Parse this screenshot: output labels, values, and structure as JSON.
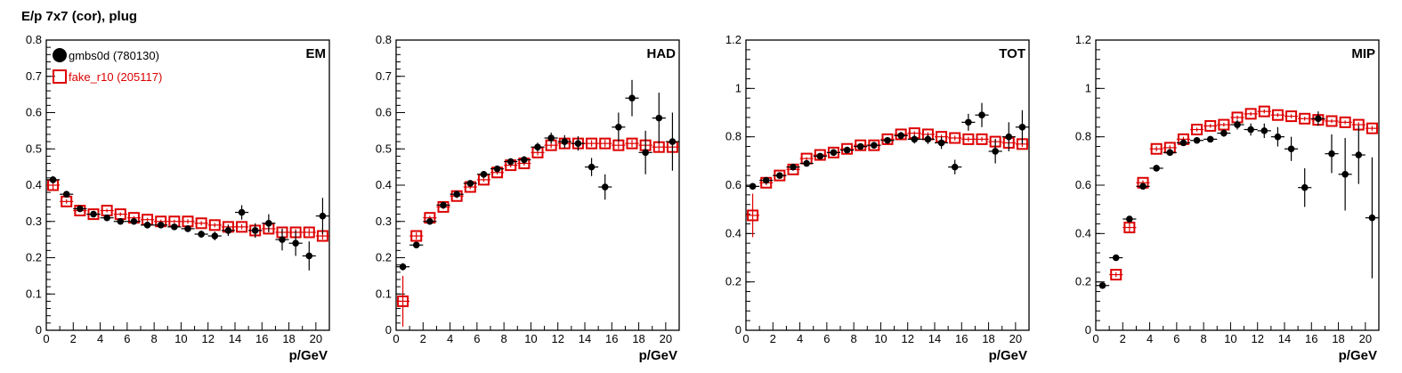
{
  "page_title": "E/p 7x7 (cor), plug",
  "colors": {
    "data": "#000000",
    "mc": "#dd0000"
  },
  "chart_data": [
    {
      "type": "scatter",
      "panel_label": "EM",
      "xlabel": "p/GeV",
      "xlim": [
        0,
        21
      ],
      "ylim": [
        0,
        0.8
      ],
      "yticks": [
        0,
        0.1,
        0.2,
        0.3,
        0.4,
        0.5,
        0.6,
        0.7,
        0.8
      ],
      "legend": {
        "position": "top-left",
        "entries": [
          {
            "label": "gmbs0d (780130)",
            "marker": "filled-circle",
            "color": "#000000"
          },
          {
            "label": "fake_r10 (205117)",
            "marker": "open-square",
            "color": "#dd0000"
          }
        ]
      },
      "series": [
        {
          "name": "gmbs0d (780130)",
          "marker": "filled-circle",
          "color": "#000000",
          "x": [
            0.5,
            1.5,
            2.5,
            3.5,
            4.5,
            5.5,
            6.5,
            7.5,
            8.5,
            9.5,
            10.5,
            11.5,
            12.5,
            13.5,
            14.5,
            15.5,
            16.5,
            17.5,
            18.5,
            19.5,
            20.5
          ],
          "y": [
            0.415,
            0.375,
            0.335,
            0.32,
            0.31,
            0.3,
            0.3,
            0.29,
            0.29,
            0.285,
            0.28,
            0.265,
            0.26,
            0.275,
            0.325,
            0.275,
            0.295,
            0.25,
            0.24,
            0.205,
            0.315
          ],
          "yerr": [
            0.01,
            0.006,
            0.006,
            0.006,
            0.006,
            0.006,
            0.006,
            0.007,
            0.007,
            0.008,
            0.009,
            0.01,
            0.012,
            0.015,
            0.02,
            0.02,
            0.025,
            0.03,
            0.035,
            0.04,
            0.05
          ]
        },
        {
          "name": "fake_r10 (205117)",
          "marker": "open-square",
          "color": "#dd0000",
          "x": [
            0.5,
            1.5,
            2.5,
            3.5,
            4.5,
            5.5,
            6.5,
            7.5,
            8.5,
            9.5,
            10.5,
            11.5,
            12.5,
            13.5,
            14.5,
            15.5,
            16.5,
            17.5,
            18.5,
            19.5,
            20.5
          ],
          "y": [
            0.4,
            0.355,
            0.33,
            0.32,
            0.33,
            0.32,
            0.31,
            0.305,
            0.3,
            0.3,
            0.3,
            0.295,
            0.29,
            0.285,
            0.285,
            0.275,
            0.28,
            0.27,
            0.27,
            0.27,
            0.26
          ],
          "yerr": [
            0.015,
            0.006,
            0.005,
            0.005,
            0.005,
            0.005,
            0.005,
            0.005,
            0.005,
            0.005,
            0.006,
            0.006,
            0.006,
            0.007,
            0.007,
            0.007,
            0.008,
            0.008,
            0.009,
            0.01,
            0.01
          ]
        }
      ]
    },
    {
      "type": "scatter",
      "panel_label": "HAD",
      "xlabel": "p/GeV",
      "xlim": [
        0,
        21
      ],
      "ylim": [
        0,
        0.8
      ],
      "yticks": [
        0,
        0.1,
        0.2,
        0.3,
        0.4,
        0.5,
        0.6,
        0.7,
        0.8
      ],
      "series": [
        {
          "name": "gmbs0d (780130)",
          "marker": "filled-circle",
          "color": "#000000",
          "x": [
            0.5,
            1.5,
            2.5,
            3.5,
            4.5,
            5.5,
            6.5,
            7.5,
            8.5,
            9.5,
            10.5,
            11.5,
            12.5,
            13.5,
            14.5,
            15.5,
            16.5,
            17.5,
            18.5,
            19.5,
            20.5
          ],
          "y": [
            0.175,
            0.235,
            0.3,
            0.345,
            0.375,
            0.405,
            0.43,
            0.445,
            0.465,
            0.47,
            0.505,
            0.53,
            0.52,
            0.515,
            0.45,
            0.395,
            0.56,
            0.64,
            0.49,
            0.585,
            0.52
          ],
          "yerr": [
            0.01,
            0.008,
            0.008,
            0.008,
            0.008,
            0.008,
            0.008,
            0.009,
            0.009,
            0.01,
            0.012,
            0.015,
            0.018,
            0.02,
            0.025,
            0.035,
            0.04,
            0.05,
            0.06,
            0.07,
            0.08
          ]
        },
        {
          "name": "fake_r10 (205117)",
          "marker": "open-square",
          "color": "#dd0000",
          "x": [
            0.5,
            1.5,
            2.5,
            3.5,
            4.5,
            5.5,
            6.5,
            7.5,
            8.5,
            9.5,
            10.5,
            11.5,
            12.5,
            13.5,
            14.5,
            15.5,
            16.5,
            17.5,
            18.5,
            19.5,
            20.5
          ],
          "y": [
            0.08,
            0.26,
            0.31,
            0.34,
            0.37,
            0.395,
            0.415,
            0.435,
            0.455,
            0.46,
            0.49,
            0.51,
            0.515,
            0.515,
            0.515,
            0.515,
            0.51,
            0.515,
            0.51,
            0.505,
            0.505
          ],
          "yerr": [
            0.07,
            0.01,
            0.006,
            0.006,
            0.006,
            0.006,
            0.006,
            0.006,
            0.006,
            0.006,
            0.008,
            0.008,
            0.008,
            0.009,
            0.009,
            0.01,
            0.01,
            0.01,
            0.012,
            0.012,
            0.012
          ]
        }
      ]
    },
    {
      "type": "scatter",
      "panel_label": "TOT",
      "xlabel": "p/GeV",
      "xlim": [
        0,
        21
      ],
      "ylim": [
        0,
        1.2
      ],
      "yticks": [
        0,
        0.2,
        0.4,
        0.6,
        0.8,
        1,
        1.2
      ],
      "series": [
        {
          "name": "gmbs0d (780130)",
          "marker": "filled-circle",
          "color": "#000000",
          "x": [
            0.5,
            1.5,
            2.5,
            3.5,
            4.5,
            5.5,
            6.5,
            7.5,
            8.5,
            9.5,
            10.5,
            11.5,
            12.5,
            13.5,
            14.5,
            15.5,
            16.5,
            17.5,
            18.5,
            19.5,
            20.5
          ],
          "y": [
            0.595,
            0.62,
            0.64,
            0.675,
            0.69,
            0.72,
            0.735,
            0.745,
            0.76,
            0.765,
            0.785,
            0.805,
            0.79,
            0.79,
            0.775,
            0.675,
            0.86,
            0.89,
            0.74,
            0.8,
            0.84
          ],
          "yerr": [
            0.01,
            0.008,
            0.008,
            0.008,
            0.008,
            0.008,
            0.008,
            0.009,
            0.009,
            0.01,
            0.012,
            0.015,
            0.018,
            0.02,
            0.025,
            0.03,
            0.035,
            0.05,
            0.05,
            0.06,
            0.07
          ]
        },
        {
          "name": "fake_r10 (205117)",
          "marker": "open-square",
          "color": "#dd0000",
          "x": [
            0.5,
            1.5,
            2.5,
            3.5,
            4.5,
            5.5,
            6.5,
            7.5,
            8.5,
            9.5,
            10.5,
            11.5,
            12.5,
            13.5,
            14.5,
            15.5,
            16.5,
            17.5,
            18.5,
            19.5,
            20.5
          ],
          "y": [
            0.475,
            0.61,
            0.64,
            0.665,
            0.71,
            0.725,
            0.735,
            0.75,
            0.765,
            0.765,
            0.79,
            0.81,
            0.815,
            0.81,
            0.8,
            0.795,
            0.79,
            0.79,
            0.78,
            0.775,
            0.77
          ],
          "yerr": [
            0.09,
            0.01,
            0.006,
            0.006,
            0.006,
            0.006,
            0.006,
            0.006,
            0.006,
            0.006,
            0.008,
            0.008,
            0.008,
            0.009,
            0.009,
            0.01,
            0.01,
            0.01,
            0.012,
            0.012,
            0.012
          ]
        }
      ]
    },
    {
      "type": "scatter",
      "panel_label": "MIP",
      "xlabel": "p/GeV",
      "xlim": [
        0,
        21
      ],
      "ylim": [
        0,
        1.2
      ],
      "yticks": [
        0,
        0.2,
        0.4,
        0.6,
        0.8,
        1,
        1.2
      ],
      "series": [
        {
          "name": "gmbs0d (780130)",
          "marker": "filled-circle",
          "color": "#000000",
          "x": [
            0.5,
            1.5,
            2.5,
            3.5,
            4.5,
            5.5,
            6.5,
            7.5,
            8.5,
            9.5,
            10.5,
            11.5,
            12.5,
            13.5,
            14.5,
            15.5,
            16.5,
            17.5,
            18.5,
            19.5,
            20.5
          ],
          "y": [
            0.185,
            0.3,
            0.46,
            0.595,
            0.67,
            0.735,
            0.775,
            0.785,
            0.79,
            0.815,
            0.85,
            0.83,
            0.825,
            0.8,
            0.75,
            0.59,
            0.875,
            0.73,
            0.645,
            0.725,
            0.465
          ],
          "yerr": [
            0.008,
            0.008,
            0.01,
            0.01,
            0.01,
            0.01,
            0.01,
            0.01,
            0.012,
            0.015,
            0.02,
            0.025,
            0.03,
            0.04,
            0.05,
            0.08,
            0.03,
            0.08,
            0.15,
            0.12,
            0.25
          ]
        },
        {
          "name": "fake_r10 (205117)",
          "marker": "open-square",
          "color": "#dd0000",
          "x": [
            0.5,
            1.5,
            2.5,
            3.5,
            4.5,
            5.5,
            6.5,
            7.5,
            8.5,
            9.5,
            10.5,
            11.5,
            12.5,
            13.5,
            14.5,
            15.5,
            16.5,
            17.5,
            18.5,
            19.5,
            20.5
          ],
          "y": [
            null,
            0.23,
            0.425,
            0.61,
            0.75,
            0.755,
            0.79,
            0.83,
            0.845,
            0.85,
            0.88,
            0.895,
            0.905,
            0.89,
            0.885,
            0.875,
            0.87,
            0.865,
            0.86,
            0.85,
            0.835
          ],
          "yerr": [
            null,
            0.01,
            0.02,
            0.01,
            0.01,
            0.01,
            0.01,
            0.008,
            0.008,
            0.008,
            0.008,
            0.008,
            0.008,
            0.008,
            0.008,
            0.008,
            0.008,
            0.008,
            0.008,
            0.01,
            0.01
          ]
        }
      ]
    }
  ]
}
